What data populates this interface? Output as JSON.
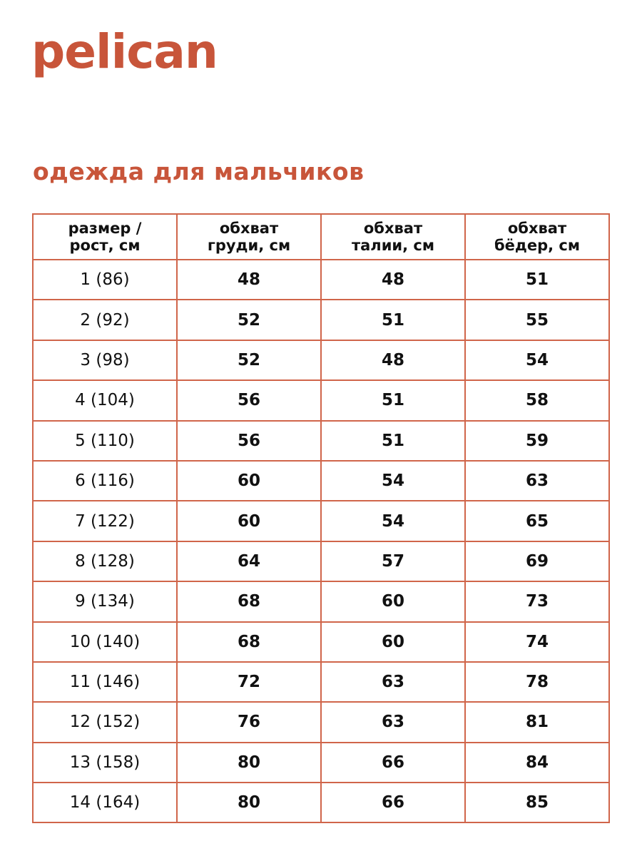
{
  "brand": {
    "logo": "pelican",
    "color": "#c8553a"
  },
  "title": "одежда для мальчиков",
  "table": {
    "headers": [
      [
        "размер /",
        "рост, см"
      ],
      [
        "обхват",
        "груди, см"
      ],
      [
        "обхват",
        "талии, см"
      ],
      [
        "обхват",
        "бёдер, см"
      ]
    ],
    "rows": [
      [
        "1 (86)",
        "48",
        "48",
        "51"
      ],
      [
        "2 (92)",
        "52",
        "51",
        "55"
      ],
      [
        "3 (98)",
        "52",
        "48",
        "54"
      ],
      [
        "4 (104)",
        "56",
        "51",
        "58"
      ],
      [
        "5 (110)",
        "56",
        "51",
        "59"
      ],
      [
        "6 (116)",
        "60",
        "54",
        "63"
      ],
      [
        "7 (122)",
        "60",
        "54",
        "65"
      ],
      [
        "8 (128)",
        "64",
        "57",
        "69"
      ],
      [
        "9 (134)",
        "68",
        "60",
        "73"
      ],
      [
        "10 (140)",
        "68",
        "60",
        "74"
      ],
      [
        "11 (146)",
        "72",
        "63",
        "78"
      ],
      [
        "12 (152)",
        "76",
        "63",
        "81"
      ],
      [
        "13 (158)",
        "80",
        "66",
        "84"
      ],
      [
        "14 (164)",
        "80",
        "66",
        "85"
      ]
    ],
    "border_color": "#d0654a"
  }
}
